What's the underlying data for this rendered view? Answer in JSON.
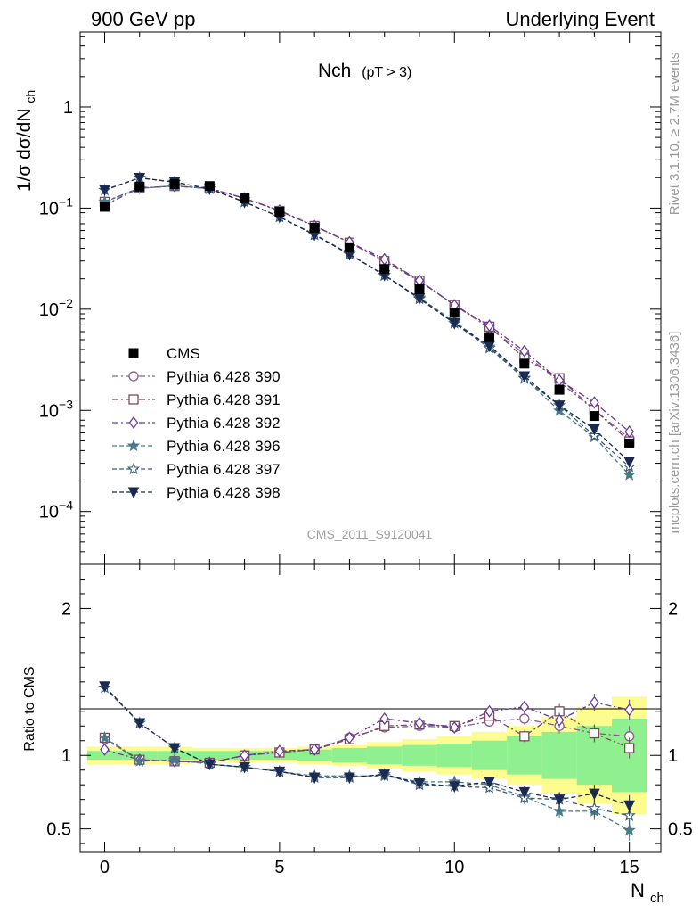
{
  "header": {
    "left": "900 GeV pp",
    "right": "Underlying Event"
  },
  "side_text": {
    "rivet": "Rivet 3.1.10, ≥ 2.7M events",
    "mcplots": "mcplots.cern.ch [arXiv:1306.3436]"
  },
  "chart_data": {
    "type": "scatter",
    "title_main": "Nch",
    "title_sub": "(pT >  3)",
    "watermark": "CMS_2011_S9120041",
    "xlabel": "N",
    "xlabel_sub": "ch",
    "ylabel_main": "1/σ dσ/dN",
    "ylabel_main_sub": "ch",
    "ylabel_ratio": "Ratio to CMS",
    "xlim": [
      -0.7,
      15.9
    ],
    "ylim_main": [
      3e-05,
      5.5
    ],
    "ylim_ratio": [
      0.34,
      2.3
    ],
    "yscale_main": "log",
    "x_ticks": [
      "0",
      "5",
      "10",
      "15"
    ],
    "y_ticks_main": [
      {
        "base": "1",
        "exp": ""
      },
      {
        "base": "10",
        "exp": "−1"
      },
      {
        "base": "10",
        "exp": "−2"
      },
      {
        "base": "10",
        "exp": "−3"
      },
      {
        "base": "10",
        "exp": "−4"
      }
    ],
    "y_ticks_ratio": [
      "0.5",
      "1",
      "2"
    ],
    "x": [
      0,
      1,
      2,
      3,
      4,
      5,
      6,
      7,
      8,
      9,
      10,
      11,
      12,
      13,
      14,
      15
    ],
    "legend_position": "lower-left",
    "data_series": {
      "name": "CMS",
      "values": [
        0.103,
        0.163,
        0.172,
        0.165,
        0.125,
        0.092,
        0.064,
        0.041,
        0.025,
        0.0158,
        0.0092,
        0.0053,
        0.0029,
        0.0016,
        0.00088,
        0.00047
      ]
    },
    "series": [
      {
        "name": "Pythia 6.428 390",
        "color": "#8a5a8e",
        "marker": "circle-open",
        "dash": "7,3,2,3",
        "ratio": [
          1.11,
          0.97,
          0.96,
          0.95,
          1.0,
          1.02,
          1.04,
          1.12,
          1.19,
          1.2,
          1.19,
          1.23,
          1.25,
          1.2,
          1.15,
          1.13
        ]
      },
      {
        "name": "Pythia 6.428 391",
        "color": "#7a4a60",
        "marker": "square-open",
        "dash": "7,3,2,3",
        "ratio": [
          1.12,
          0.97,
          0.96,
          0.95,
          1.0,
          1.02,
          1.04,
          1.11,
          1.2,
          1.21,
          1.2,
          1.27,
          1.13,
          1.3,
          1.15,
          1.05
        ]
      },
      {
        "name": "Pythia 6.428 392",
        "color": "#6a3a9a",
        "marker": "diamond-open",
        "dash": "7,3,2,3",
        "ratio": [
          1.04,
          0.97,
          0.96,
          0.95,
          1.0,
          1.03,
          1.04,
          1.12,
          1.25,
          1.22,
          1.19,
          1.3,
          1.33,
          1.24,
          1.36,
          1.31
        ]
      },
      {
        "name": "Pythia 6.428 396",
        "color": "#4a7a8a",
        "marker": "star-filled",
        "dash": "5,3",
        "ratio": [
          1.12,
          0.96,
          0.97,
          0.94,
          0.92,
          0.89,
          0.86,
          0.86,
          0.86,
          0.82,
          0.82,
          0.8,
          0.72,
          0.62,
          0.62,
          0.49
        ]
      },
      {
        "name": "Pythia 6.428 397",
        "color": "#3a5a7a",
        "marker": "star-open",
        "dash": "5,3",
        "ratio": [
          1.46,
          1.22,
          1.05,
          0.94,
          0.92,
          0.89,
          0.85,
          0.85,
          0.87,
          0.8,
          0.79,
          0.78,
          0.71,
          0.7,
          0.64,
          0.59
        ]
      },
      {
        "name": "Pythia 6.428 398",
        "color": "#1a2a50",
        "marker": "triangle-down-filled",
        "dash": "5,3",
        "ratio": [
          1.47,
          1.22,
          1.05,
          0.94,
          0.92,
          0.89,
          0.85,
          0.85,
          0.87,
          0.81,
          0.79,
          0.82,
          0.75,
          0.7,
          0.74,
          0.66
        ]
      }
    ],
    "error_bands": {
      "yellow": [
        0.06,
        0.06,
        0.06,
        0.05,
        0.05,
        0.05,
        0.06,
        0.07,
        0.09,
        0.11,
        0.13,
        0.16,
        0.2,
        0.26,
        0.33,
        0.4
      ],
      "green": [
        0.03,
        0.03,
        0.03,
        0.03,
        0.03,
        0.03,
        0.04,
        0.05,
        0.06,
        0.07,
        0.08,
        0.1,
        0.13,
        0.16,
        0.2,
        0.25
      ]
    },
    "mc_ratio_errors": [
      0.01,
      0.01,
      0.01,
      0.01,
      0.01,
      0.01,
      0.01,
      0.01,
      0.015,
      0.02,
      0.02,
      0.03,
      0.04,
      0.05,
      0.06,
      0.07
    ]
  }
}
